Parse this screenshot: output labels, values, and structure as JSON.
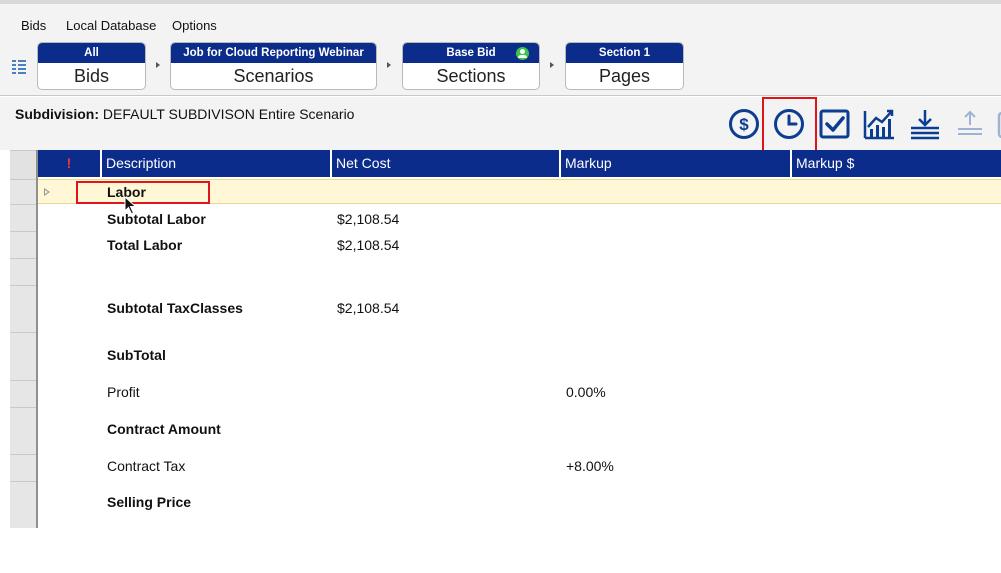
{
  "menu": [
    "Bids",
    "Local Database",
    "Options"
  ],
  "breadcrumbs": [
    {
      "top": "All",
      "bottom": "Bids"
    },
    {
      "top": "Job for Cloud Reporting Webinar",
      "bottom": "Scenarios"
    },
    {
      "top": "Base Bid",
      "bottom": "Sections"
    },
    {
      "top": "Section 1",
      "bottom": "Pages"
    }
  ],
  "subdivision": {
    "label": "Subdivision:",
    "value": "DEFAULT SUBDIVISON  Entire Scenario"
  },
  "toolbar": {
    "icons": [
      "dollar-icon",
      "clock-icon",
      "checkmark-icon",
      "chart-icon",
      "download-icon",
      "upload-icon"
    ],
    "highlight_color": "#e0141b",
    "icon_color": "#0b3d91"
  },
  "grid": {
    "columns": [
      "!",
      "Description",
      "Net Cost",
      "Markup",
      "Markup $"
    ],
    "header_color": "#0b2c8a",
    "selected_row_color": "#fff7d6",
    "rows": [
      {
        "description": "Labor",
        "net_cost": "",
        "markup": "",
        "bold": true,
        "selected": true
      },
      {
        "description": "Subtotal Labor",
        "net_cost": "$2,108.54",
        "markup": "",
        "bold": true
      },
      {
        "description": "Total Labor",
        "net_cost": "$2,108.54",
        "markup": "",
        "bold": true
      },
      {
        "description": "",
        "net_cost": "",
        "markup": "",
        "bold": false
      },
      {
        "description": "Subtotal TaxClasses",
        "net_cost": "$2,108.54",
        "markup": "",
        "bold": true
      },
      {
        "description": "SubTotal",
        "net_cost": "",
        "markup": "",
        "bold": true
      },
      {
        "description": "Profit",
        "net_cost": "",
        "markup": "0.00%",
        "bold": false
      },
      {
        "description": "Contract Amount",
        "net_cost": "",
        "markup": "",
        "bold": true
      },
      {
        "description": "Contract Tax",
        "net_cost": "",
        "markup": "+8.00%",
        "bold": false
      },
      {
        "description": "Selling Price",
        "net_cost": "",
        "markup": "",
        "bold": true
      }
    ]
  }
}
